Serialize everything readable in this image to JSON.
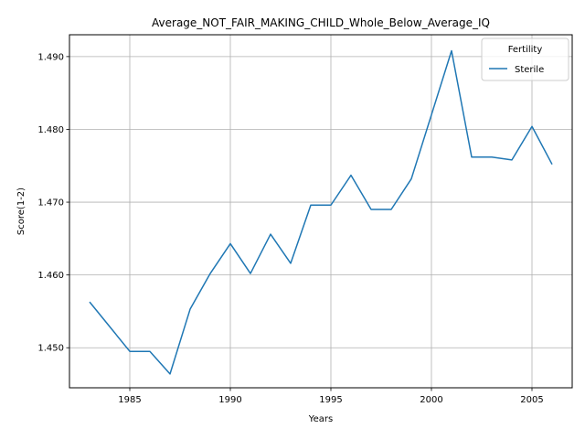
{
  "colors": {
    "series": "#1f77b4",
    "grid": "#b0b0b0",
    "axes": "#000000"
  },
  "chart_data": {
    "type": "line",
    "title": "Average_NOT_FAIR_MAKING_CHILD_Whole_Below_Average_IQ",
    "xlabel": "Years",
    "ylabel": "Score(1-2)",
    "xlim": [
      1982,
      2007
    ],
    "ylim": [
      1.4445,
      1.493
    ],
    "xticks": [
      1985,
      1990,
      1995,
      2000,
      2005
    ],
    "yticks": [
      1.45,
      1.46,
      1.47,
      1.48,
      1.49
    ],
    "grid": true,
    "legend": {
      "title": "Fertility",
      "placement": "top-right"
    },
    "series": [
      {
        "name": "Sterile",
        "color": "#1f77b4",
        "x": [
          1983,
          1984,
          1985,
          1986,
          1987,
          1988,
          1989,
          1990,
          1991,
          1992,
          1993,
          1994,
          1995,
          1996,
          1997,
          1998,
          1999,
          2000,
          2001,
          2002,
          2003,
          2004,
          2005,
          2006
        ],
        "y": [
          1.4563,
          1.4529,
          1.4495,
          1.4495,
          1.4464,
          1.4553,
          1.4602,
          1.4643,
          1.4602,
          1.4656,
          1.4616,
          1.4696,
          1.4696,
          1.4737,
          1.469,
          1.469,
          1.4732,
          1.482,
          1.4908,
          1.4762,
          1.4762,
          1.4758,
          1.4804,
          1.4752
        ]
      }
    ]
  }
}
